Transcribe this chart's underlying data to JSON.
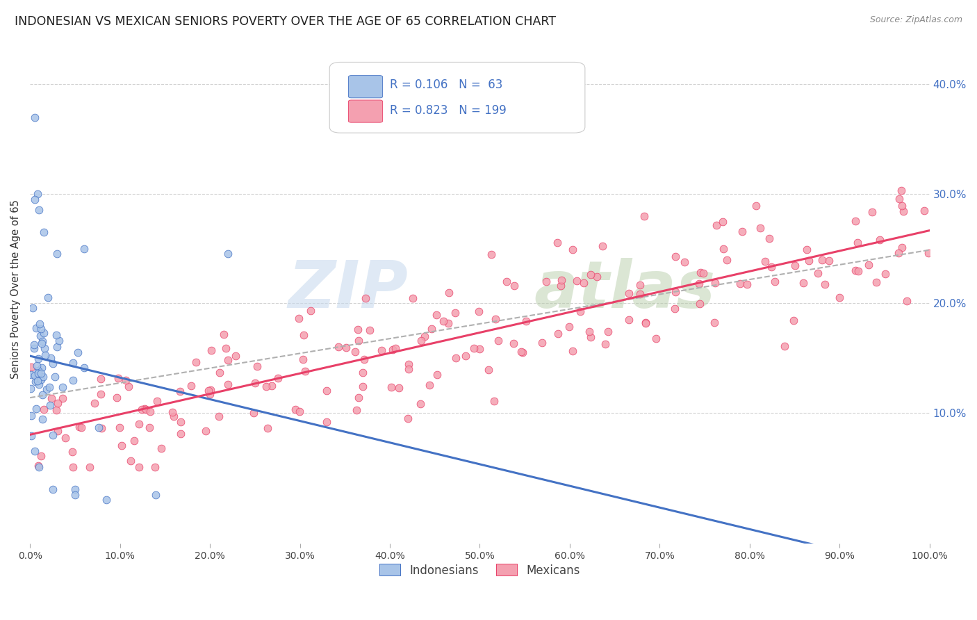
{
  "title": "INDONESIAN VS MEXICAN SENIORS POVERTY OVER THE AGE OF 65 CORRELATION CHART",
  "source": "Source: ZipAtlas.com",
  "ylabel": "Seniors Poverty Over the Age of 65",
  "legend_indonesian": "Indonesians",
  "legend_mexican": "Mexicans",
  "r_indonesian": 0.106,
  "n_indonesian": 63,
  "r_mexican": 0.823,
  "n_mexican": 199,
  "color_indonesian_scatter": "#a8c4e8",
  "color_indonesian_line": "#4472c4",
  "color_mexican_scatter": "#f4a0b0",
  "color_mexican_line": "#e84068",
  "color_trend_dashed": "#b0b0b0",
  "background_color": "#ffffff",
  "grid_color": "#cccccc",
  "watermark_zip": "ZIP",
  "watermark_atlas": "atlas",
  "xlim": [
    0,
    1.0
  ],
  "ylim": [
    -0.02,
    0.445
  ],
  "xticks": [
    0.0,
    0.1,
    0.2,
    0.3,
    0.4,
    0.5,
    0.6,
    0.7,
    0.8,
    0.9,
    1.0
  ],
  "xticklabels": [
    "0.0%",
    "10.0%",
    "20.0%",
    "30.0%",
    "40.0%",
    "50.0%",
    "60.0%",
    "70.0%",
    "80.0%",
    "90.0%",
    "100.0%"
  ],
  "yticks": [
    0.1,
    0.2,
    0.3,
    0.4
  ],
  "yticklabels": [
    "10.0%",
    "20.0%",
    "30.0%",
    "40.0%"
  ],
  "title_fontsize": 12.5,
  "label_fontsize": 10.5,
  "tick_fontsize": 10,
  "legend_fontsize": 11,
  "right_tick_color": "#4472c4"
}
